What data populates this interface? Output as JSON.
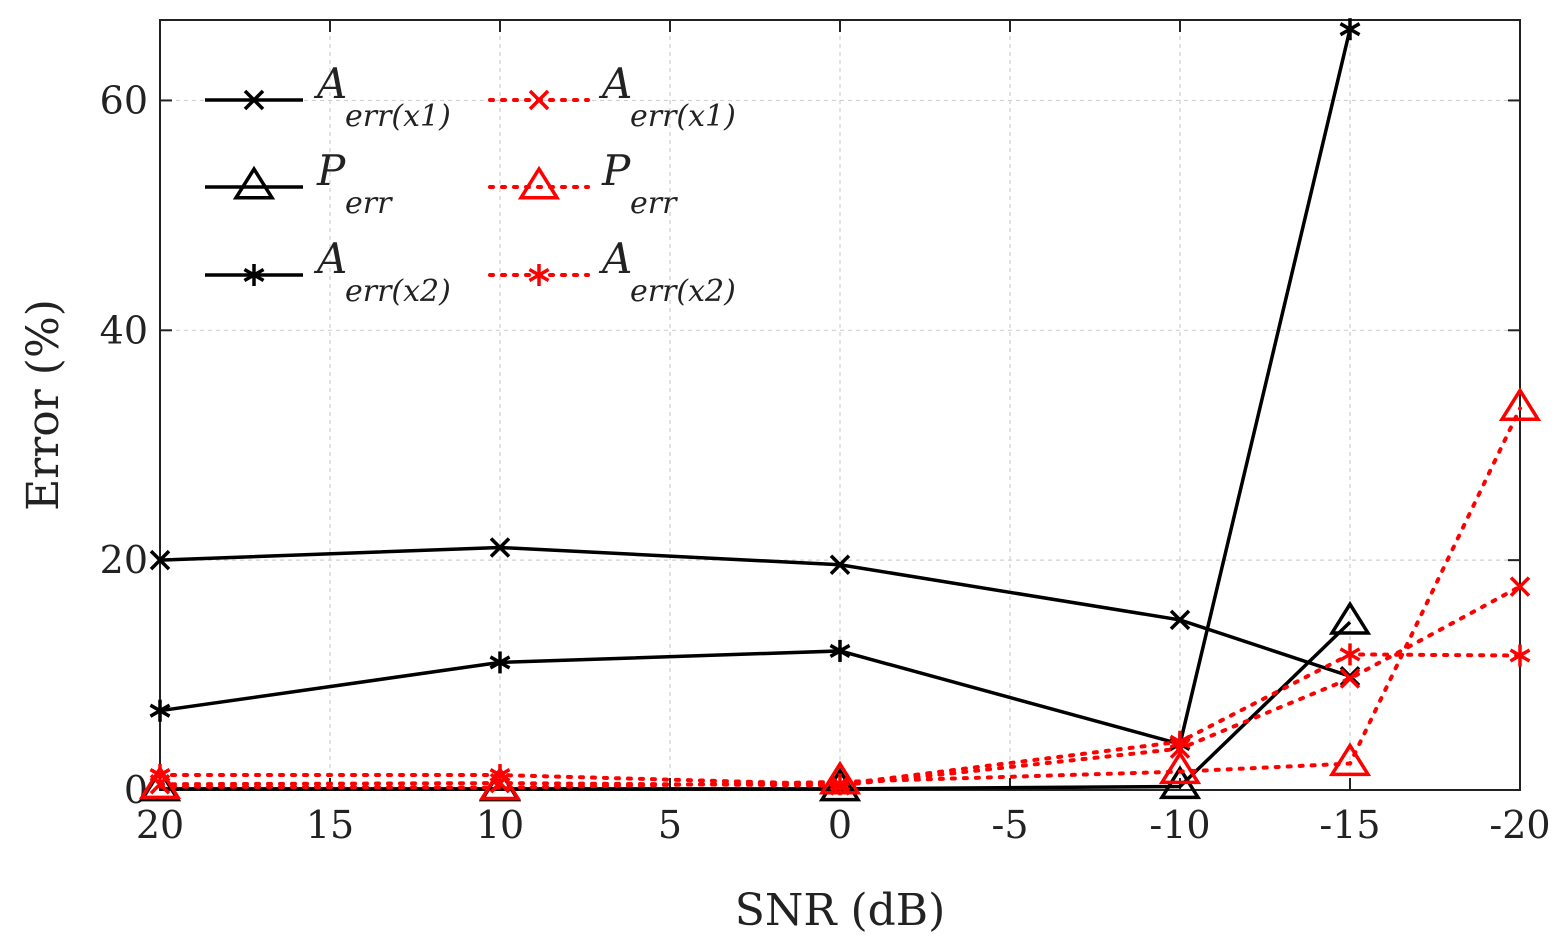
{
  "chart_data": {
    "type": "line",
    "title": "",
    "xlabel": "SNR (dB)",
    "ylabel": "Error (%)",
    "xlim": [
      20,
      -20
    ],
    "ylim": [
      0,
      67
    ],
    "xticks": [
      20,
      15,
      10,
      5,
      0,
      -5,
      -10,
      -15,
      -20
    ],
    "xtick_labels": [
      "20",
      "15",
      "10",
      "5",
      "0",
      "-5",
      "-10",
      "-15",
      "-20"
    ],
    "yticks": [
      0,
      20,
      40,
      60
    ],
    "ytick_labels": [
      "0",
      "20",
      "40",
      "60"
    ],
    "grid": true,
    "legend_position": "top-left",
    "series": [
      {
        "name": "A",
        "sub": "err(x1)",
        "color": "#000000",
        "style": "solid",
        "marker": "x",
        "x": [
          20,
          10,
          0,
          -10,
          -15
        ],
        "y": [
          20.0,
          21.1,
          19.6,
          14.8,
          9.9
        ]
      },
      {
        "name": "P",
        "sub": "err",
        "color": "#000000",
        "style": "solid",
        "marker": "triangle",
        "x": [
          20,
          10,
          0,
          -10,
          -15
        ],
        "y": [
          0.1,
          0.1,
          0.1,
          0.3,
          14.6
        ]
      },
      {
        "name": "A",
        "sub": "err(x2)",
        "color": "#000000",
        "style": "solid",
        "marker": "star",
        "x": [
          20,
          10,
          0,
          -10,
          -15
        ],
        "y": [
          6.9,
          11.1,
          12.1,
          4.0,
          66.2
        ]
      },
      {
        "name": "A",
        "sub": "err(x1)",
        "color": "#ff0000",
        "style": "dotted",
        "marker": "x",
        "x": [
          20,
          10,
          0,
          -10,
          -15,
          -20
        ],
        "y": [
          0.5,
          0.6,
          0.4,
          3.6,
          9.7,
          17.7
        ]
      },
      {
        "name": "P",
        "sub": "err",
        "color": "#ff0000",
        "style": "dotted",
        "marker": "triangle",
        "x": [
          20,
          10,
          0,
          -10,
          -15,
          -20
        ],
        "y": [
          0.3,
          0.2,
          0.7,
          1.6,
          2.3,
          33.2
        ]
      },
      {
        "name": "A",
        "sub": "err(x2)",
        "color": "#ff0000",
        "style": "dotted",
        "marker": "star",
        "x": [
          20,
          10,
          0,
          -10,
          -15,
          -20
        ],
        "y": [
          1.3,
          1.3,
          0.5,
          4.2,
          11.8,
          11.7
        ]
      }
    ]
  }
}
